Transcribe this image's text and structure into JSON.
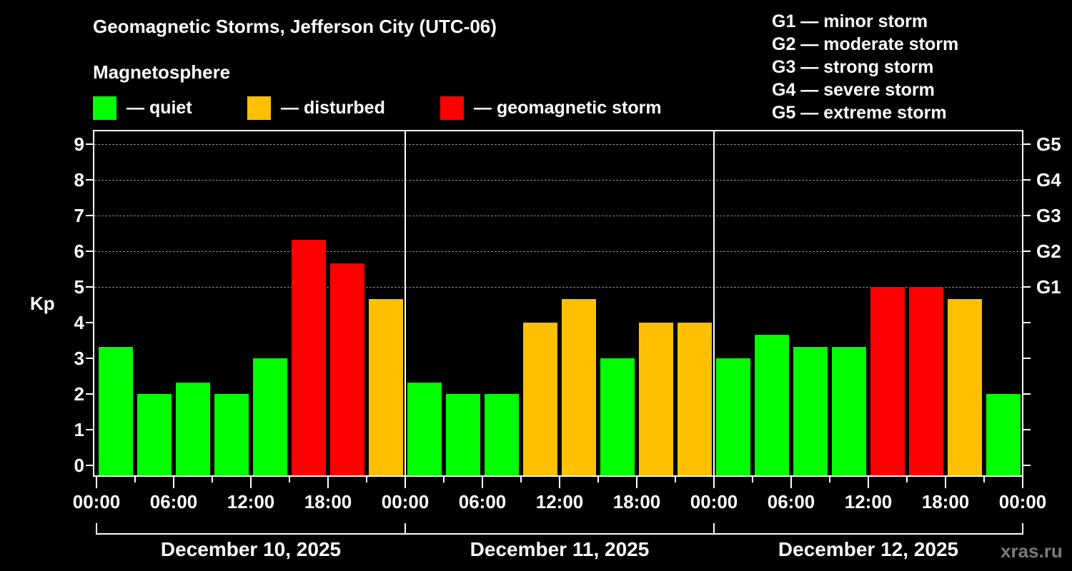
{
  "header": {
    "title": "Geomagnetic Storms, Jefferson City (UTC-06)",
    "subtitle": "Magnetosphere"
  },
  "legend": {
    "items": [
      {
        "label": "— quiet",
        "color": "#00ff00"
      },
      {
        "label": "— disturbed",
        "color": "#ffc000"
      },
      {
        "label": "— geomagnetic storm",
        "color": "#ff0000"
      }
    ]
  },
  "g_legend": [
    "G1 — minor storm",
    "G2 — moderate storm",
    "G3 — strong storm",
    "G4 — severe storm",
    "G5 — extreme storm"
  ],
  "axes": {
    "ylabel": "Kp",
    "yticks": [
      "0",
      "1",
      "2",
      "3",
      "4",
      "5",
      "6",
      "7",
      "8",
      "9"
    ],
    "g_ticks": [
      {
        "label": "G1",
        "kp": 5
      },
      {
        "label": "G2",
        "kp": 6
      },
      {
        "label": "G3",
        "kp": 7
      },
      {
        "label": "G4",
        "kp": 8
      },
      {
        "label": "G5",
        "kp": 9
      }
    ],
    "xticks": [
      "00:00",
      "06:00",
      "12:00",
      "18:00",
      "00:00",
      "06:00",
      "12:00",
      "18:00",
      "00:00",
      "06:00",
      "12:00",
      "18:00",
      "00:00"
    ],
    "days": [
      "December 10, 2025",
      "December 11, 2025",
      "December 12, 2025"
    ]
  },
  "watermark": "xras.ru",
  "colors": {
    "quiet": "#00ff00",
    "disturbed": "#ffc000",
    "storm": "#ff0000",
    "grid": "#8a8a8a",
    "background": "#000000"
  },
  "chart_data": {
    "type": "bar",
    "title": "Geomagnetic Storms, Jefferson City (UTC-06)",
    "xlabel": "",
    "ylabel": "Kp",
    "ylim": [
      -0.33,
      9.4
    ],
    "grid": "dashed horizontal at Kp 5-9",
    "legend_position": "top",
    "categories": [
      "Dec 10 00:00",
      "Dec 10 03:00",
      "Dec 10 06:00",
      "Dec 10 09:00",
      "Dec 10 12:00",
      "Dec 10 15:00",
      "Dec 10 18:00",
      "Dec 10 21:00",
      "Dec 11 00:00",
      "Dec 11 03:00",
      "Dec 11 06:00",
      "Dec 11 09:00",
      "Dec 11 12:00",
      "Dec 11 15:00",
      "Dec 11 18:00",
      "Dec 11 21:00",
      "Dec 12 00:00",
      "Dec 12 03:00",
      "Dec 12 06:00",
      "Dec 12 09:00",
      "Dec 12 12:00",
      "Dec 12 15:00",
      "Dec 12 18:00",
      "Dec 12 21:00"
    ],
    "values": [
      3.33,
      2.0,
      2.33,
      2.0,
      3.0,
      6.33,
      5.67,
      4.67,
      2.33,
      2.0,
      2.0,
      4.0,
      4.67,
      3.0,
      4.0,
      4.0,
      3.0,
      3.67,
      3.33,
      3.33,
      5.0,
      5.0,
      4.67,
      2.0
    ],
    "status": [
      "quiet",
      "quiet",
      "quiet",
      "quiet",
      "quiet",
      "storm",
      "storm",
      "disturbed",
      "quiet",
      "quiet",
      "quiet",
      "disturbed",
      "disturbed",
      "quiet",
      "disturbed",
      "disturbed",
      "quiet",
      "quiet",
      "quiet",
      "quiet",
      "storm",
      "storm",
      "disturbed",
      "quiet"
    ]
  }
}
